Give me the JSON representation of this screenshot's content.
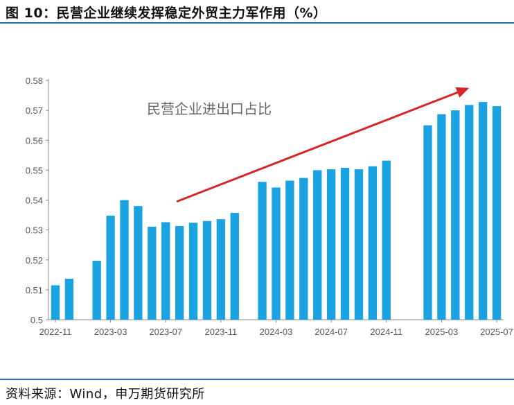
{
  "header": {
    "title": "图 10：民营企业继续发挥稳定外贸主力军作用（%）"
  },
  "footer": {
    "source": "资料来源：Wind，申万期货研究所"
  },
  "colors": {
    "bar": "#1aa3e0",
    "arrow": "#d62728",
    "axis": "#888888",
    "rule": "#2b6cb0"
  },
  "chart_data": {
    "type": "bar",
    "annotation": "民营企业进出口占比",
    "categories": [
      "2022-11",
      "2022-12",
      "2023-01",
      "2023-02",
      "2023-03",
      "2023-04",
      "2023-05",
      "2023-06",
      "2023-07",
      "2023-08",
      "2023-09",
      "2023-10",
      "2023-11",
      "2023-12",
      "2024-01",
      "2024-02",
      "2024-03",
      "2024-04",
      "2024-05",
      "2024-06",
      "2024-07",
      "2024-08",
      "2024-09",
      "2024-10",
      "2024-11",
      "2024-12",
      "2025-01",
      "2025-02",
      "2025-03",
      "2025-04",
      "2025-05",
      "2025-06",
      "2025-07"
    ],
    "values": [
      0.5115,
      0.5137,
      null,
      0.5197,
      0.5348,
      0.54,
      0.538,
      0.5311,
      0.5326,
      0.5313,
      0.5324,
      0.533,
      0.5336,
      0.5357,
      null,
      0.5461,
      0.5442,
      0.5465,
      0.5474,
      0.55,
      0.5503,
      0.5508,
      0.5503,
      0.5513,
      0.5532,
      null,
      null,
      0.565,
      0.5687,
      0.57,
      0.5718,
      0.5728,
      0.5714
    ],
    "tick_labels": [
      "2022-11",
      "2023-03",
      "2023-07",
      "2023-11",
      "2024-03",
      "2024-07",
      "2024-11",
      "2025-03",
      "2025-07"
    ],
    "y_ticks": [
      "0.5",
      "0.51",
      "0.52",
      "0.53",
      "0.54",
      "0.55",
      "0.56",
      "0.57",
      "0.58"
    ],
    "ylim": [
      0.5,
      0.58
    ],
    "grid": false,
    "trend_arrow": {
      "from": {
        "category": "2023-08",
        "value": 0.5395
      },
      "to": {
        "category": "2025-05",
        "value": 0.5775
      }
    }
  }
}
